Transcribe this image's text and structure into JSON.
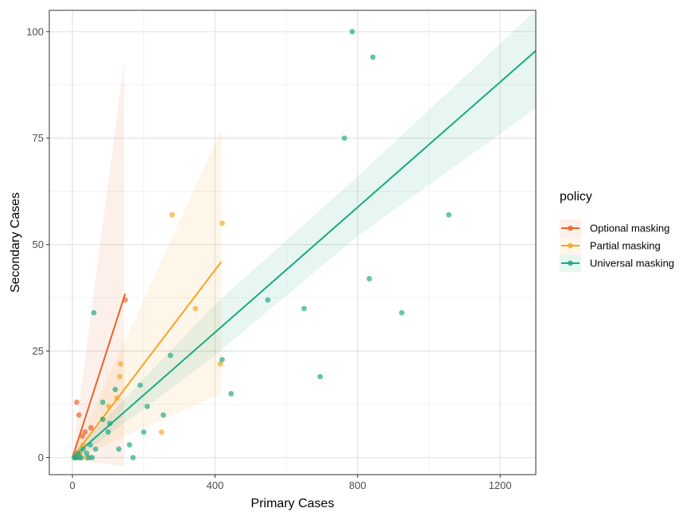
{
  "chart_data": {
    "type": "scatter",
    "title": "",
    "xlabel": "Primary Cases",
    "ylabel": "Secondary Cases",
    "xlim": [
      -65,
      1300
    ],
    "ylim": [
      -4,
      105
    ],
    "x_ticks": [
      0,
      400,
      800,
      1200
    ],
    "y_ticks": [
      0,
      25,
      50,
      75,
      100
    ],
    "x_tick_labels": [
      "0",
      "400",
      "800",
      "1200"
    ],
    "y_tick_labels": [
      "0",
      "25",
      "50",
      "75",
      "100"
    ],
    "grid": true,
    "legend": {
      "title": "policy",
      "position": "right"
    },
    "series": [
      {
        "name": "Optional masking",
        "color": "#e8632a",
        "points": [
          [
            12,
            13
          ],
          [
            18,
            10
          ],
          [
            28,
            5
          ],
          [
            35,
            6
          ],
          [
            52,
            7
          ],
          [
            148,
            37
          ],
          [
            10,
            0
          ],
          [
            20,
            1
          ]
        ],
        "fit_line": [
          [
            0,
            0
          ],
          [
            148,
            38.5
          ]
        ],
        "band_upper": [
          [
            0,
            0.5
          ],
          [
            145,
            93
          ]
        ],
        "band_lower": [
          [
            0,
            -0.5
          ],
          [
            145,
            -2
          ]
        ]
      },
      {
        "name": "Partial masking",
        "color": "#f5a623",
        "points": [
          [
            280,
            57
          ],
          [
            420,
            55
          ],
          [
            345,
            35
          ],
          [
            135,
            22
          ],
          [
            133,
            19
          ],
          [
            125,
            14
          ],
          [
            102,
            12
          ],
          [
            415,
            22
          ],
          [
            250,
            6
          ],
          [
            85,
            9
          ],
          [
            30,
            3
          ],
          [
            20,
            1
          ],
          [
            40,
            0
          ],
          [
            15,
            0
          ]
        ],
        "fit_line": [
          [
            0,
            0
          ],
          [
            418,
            46
          ]
        ],
        "band_upper": [
          [
            0,
            0.5
          ],
          [
            418,
            77
          ]
        ],
        "band_lower": [
          [
            0,
            -0.5
          ],
          [
            418,
            15
          ]
        ]
      },
      {
        "name": "Universal masking",
        "color": "#1aaa82",
        "points": [
          [
            785,
            100
          ],
          [
            843,
            94
          ],
          [
            763,
            75
          ],
          [
            1056,
            57
          ],
          [
            833,
            42
          ],
          [
            548,
            37
          ],
          [
            650,
            35
          ],
          [
            924,
            34
          ],
          [
            60,
            34
          ],
          [
            420,
            23
          ],
          [
            275,
            24
          ],
          [
            695,
            19
          ],
          [
            445,
            15
          ],
          [
            190,
            17
          ],
          [
            85,
            13
          ],
          [
            120,
            16
          ],
          [
            210,
            12
          ],
          [
            255,
            10
          ],
          [
            105,
            8
          ],
          [
            100,
            6
          ],
          [
            200,
            6
          ],
          [
            85,
            9
          ],
          [
            160,
            3
          ],
          [
            130,
            2
          ],
          [
            65,
            2
          ],
          [
            50,
            3
          ],
          [
            30,
            2
          ],
          [
            40,
            1
          ],
          [
            170,
            0
          ],
          [
            45,
            0
          ],
          [
            55,
            0
          ],
          [
            25,
            0
          ],
          [
            10,
            0
          ],
          [
            15,
            1
          ],
          [
            5,
            0
          ],
          [
            20,
            0
          ]
        ],
        "fit_line": [
          [
            0,
            0
          ],
          [
            1300,
            95.5
          ]
        ],
        "band_upper": [
          [
            0,
            1
          ],
          [
            400,
            36
          ],
          [
            800,
            66
          ],
          [
            1300,
            105
          ]
        ],
        "band_lower": [
          [
            0,
            -1
          ],
          [
            400,
            24
          ],
          [
            800,
            52
          ],
          [
            1300,
            82
          ]
        ]
      }
    ]
  }
}
